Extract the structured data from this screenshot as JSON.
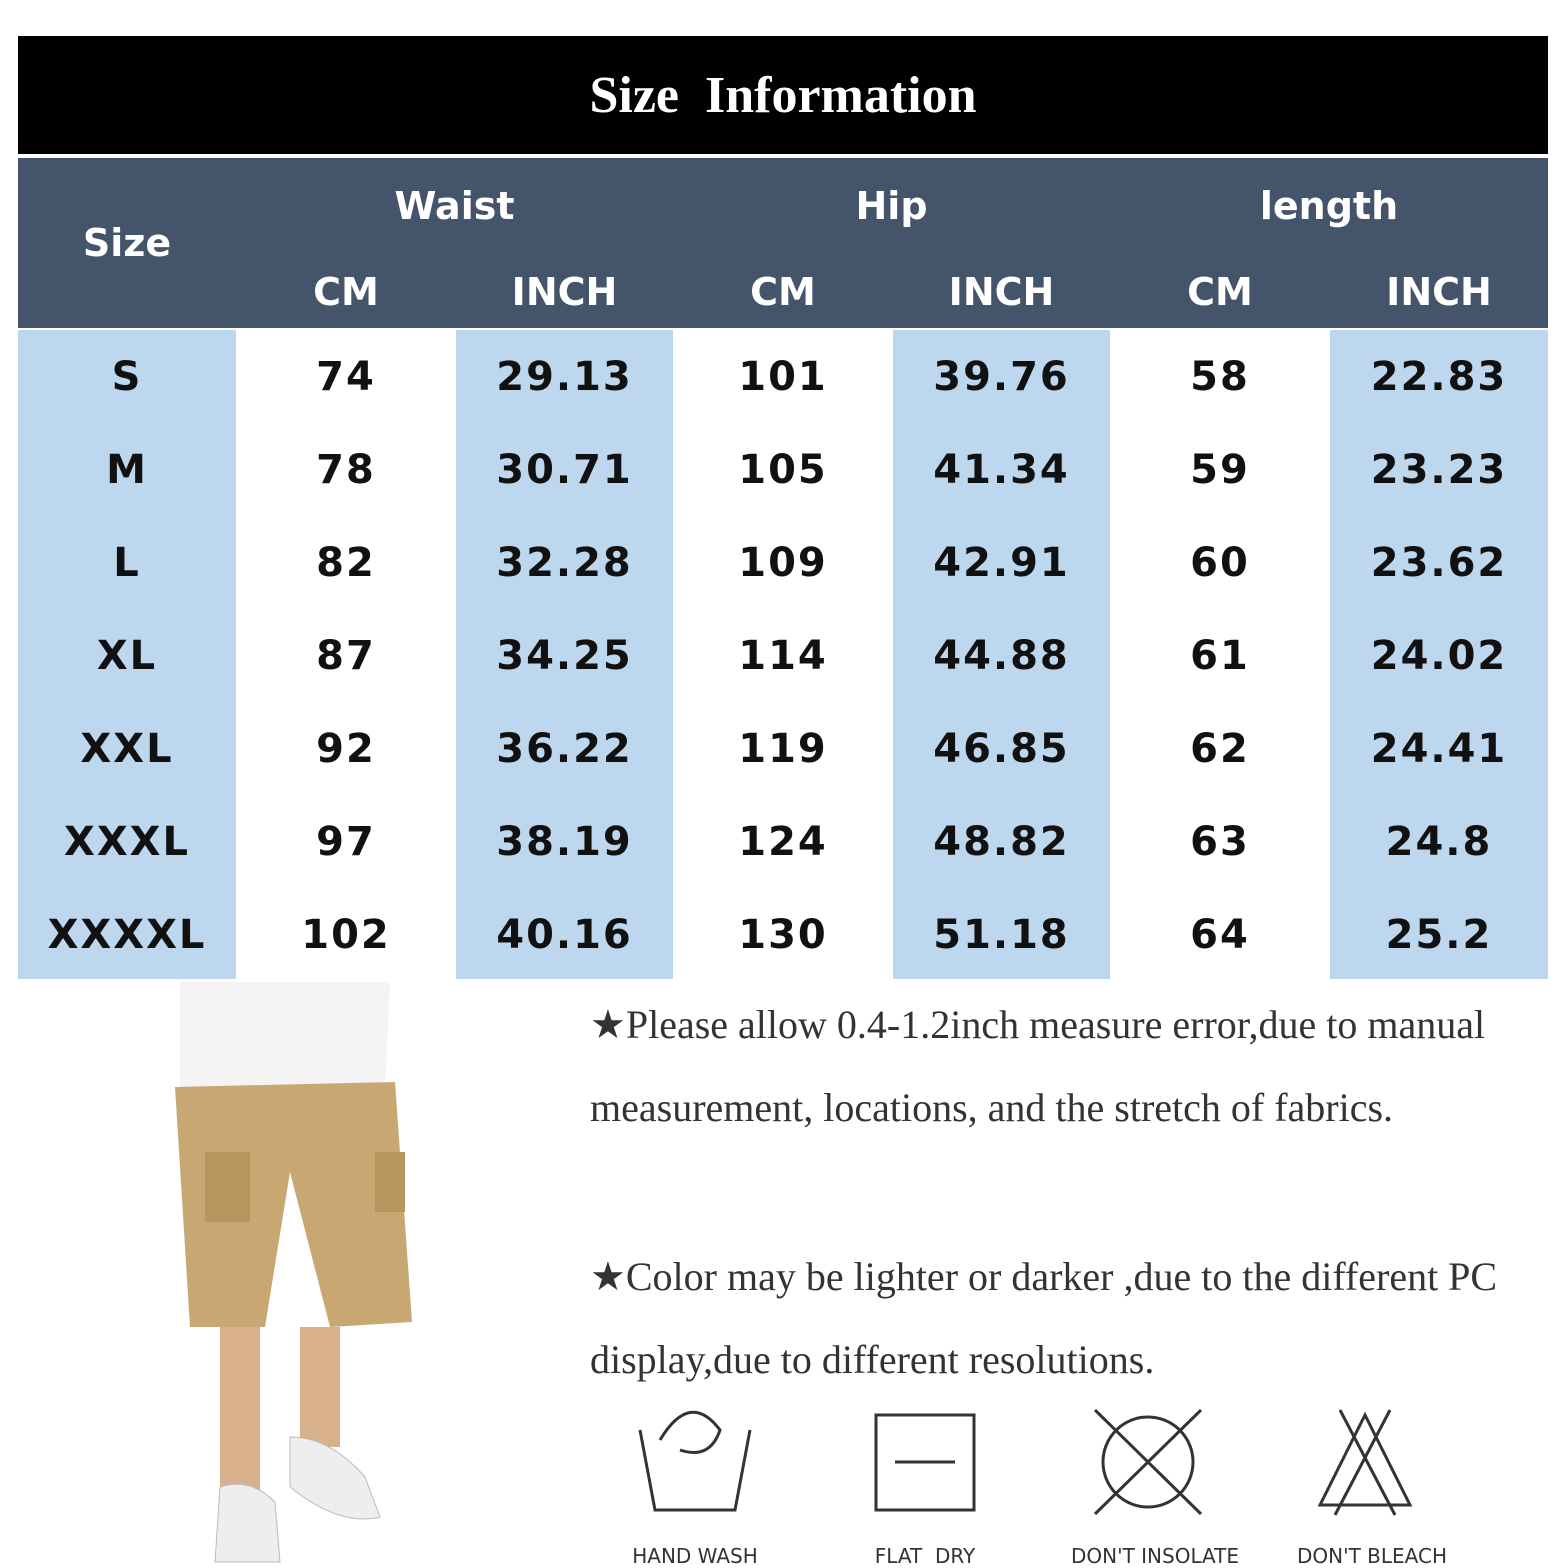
{
  "header": {
    "title": "Size  Information"
  },
  "table": {
    "size_heading": "Size",
    "groups": [
      "Waist",
      "Hip",
      "length"
    ],
    "units": [
      "CM",
      "INCH",
      "CM",
      "INCH",
      "CM",
      "INCH"
    ],
    "rows": [
      [
        "S",
        "74",
        "29.13",
        "101",
        "39.76",
        "58",
        "22.83"
      ],
      [
        "M",
        "78",
        "30.71",
        "105",
        "41.34",
        "59",
        "23.23"
      ],
      [
        "L",
        "82",
        "32.28",
        "109",
        "42.91",
        "60",
        "23.62"
      ],
      [
        "XL",
        "87",
        "34.25",
        "114",
        "44.88",
        "61",
        "24.02"
      ],
      [
        "XXL",
        "92",
        "36.22",
        "119",
        "46.85",
        "62",
        "24.41"
      ],
      [
        "XXXL",
        "97",
        "38.19",
        "124",
        "48.82",
        "63",
        "24.8"
      ],
      [
        "XXXXL",
        "102",
        "40.16",
        "130",
        "51.18",
        "64",
        "25.2"
      ]
    ]
  },
  "notes": [
    "★Please allow 0.4-1.2inch measure error,due to manual measurement, locations, and the stretch of fabrics.",
    "★Color may be lighter or darker ,due to the different PC display,due to different resolutions."
  ],
  "care_icons": [
    {
      "label": "HAND WASH"
    },
    {
      "label": "FLAT  DRY"
    },
    {
      "label": "DON'T INSOLATE"
    },
    {
      "label": "DON'T BLEACH"
    }
  ]
}
